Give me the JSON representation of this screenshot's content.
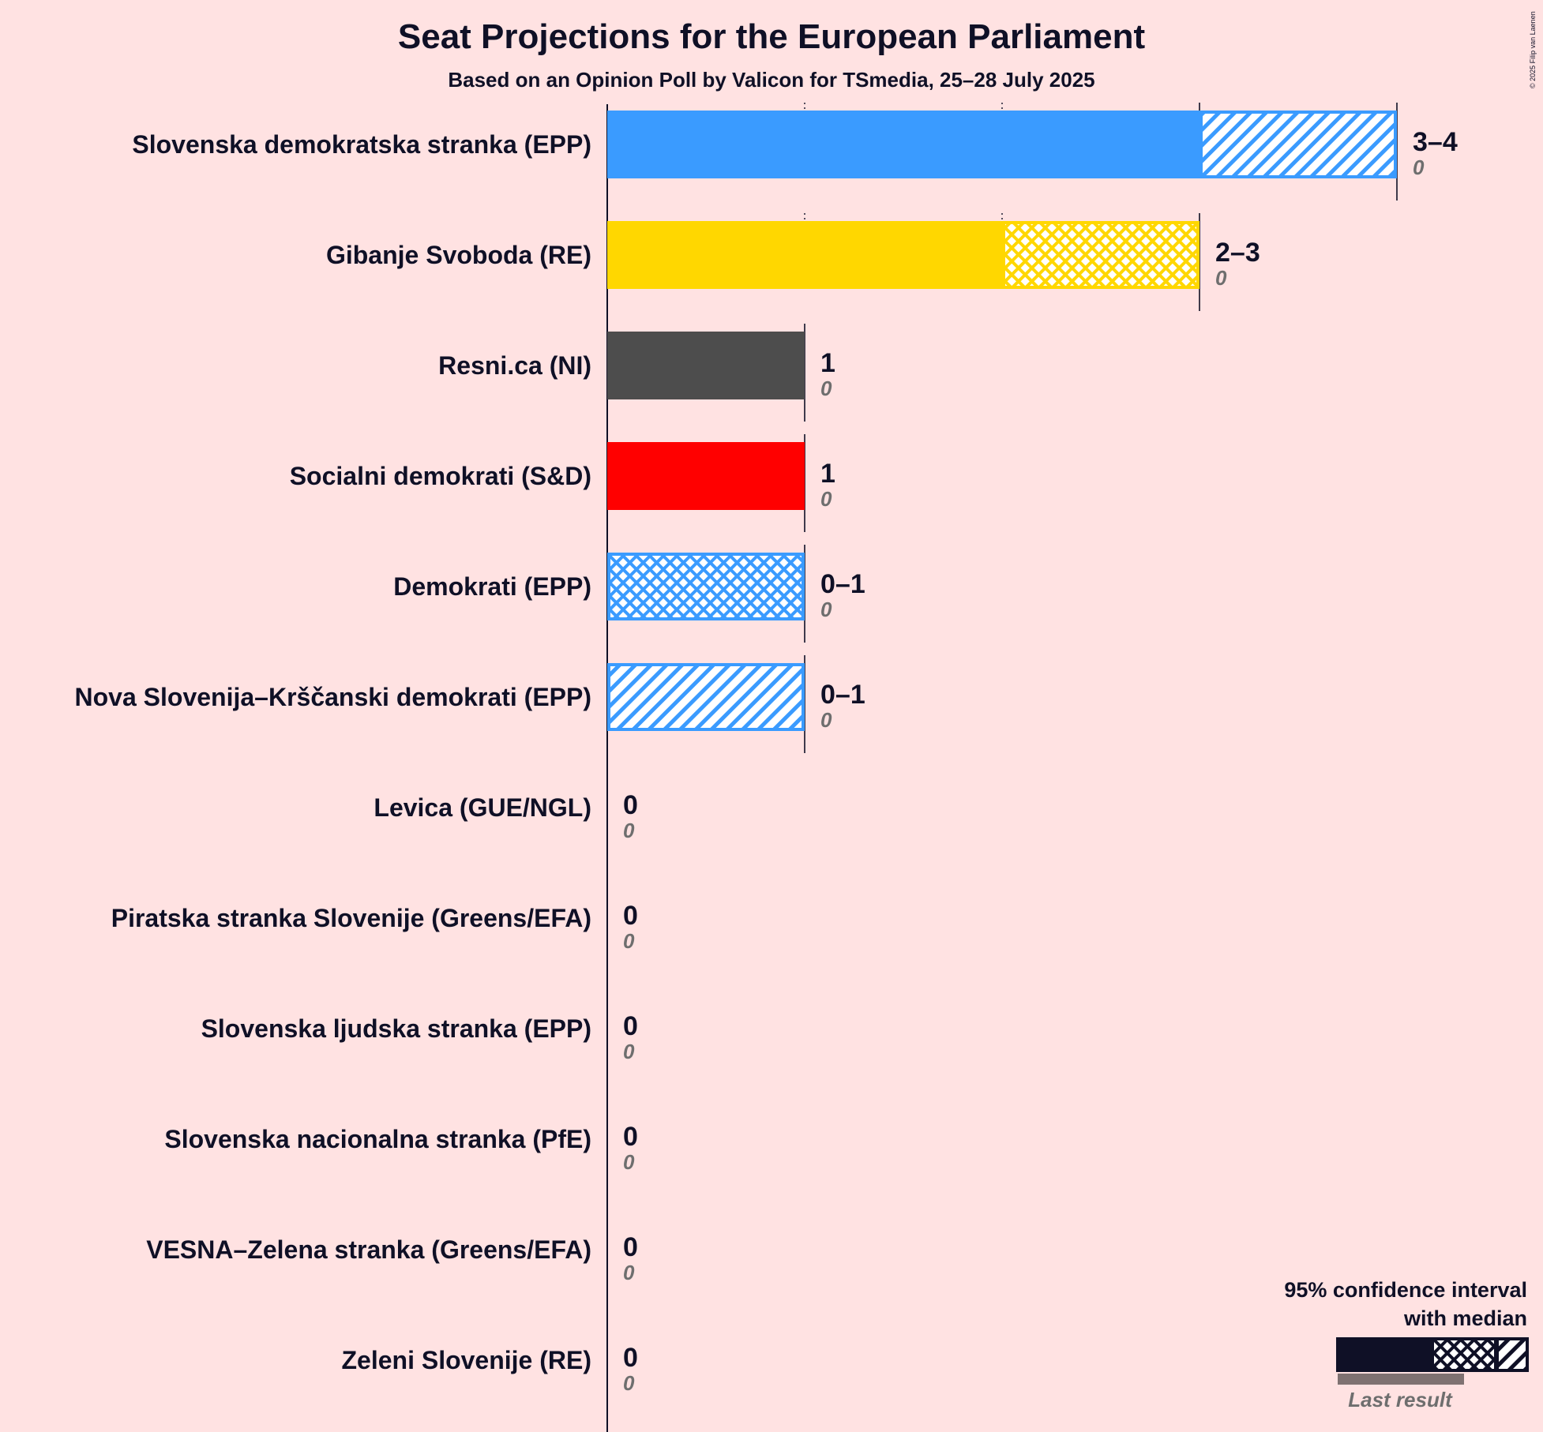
{
  "chart_data": {
    "type": "bar",
    "orientation": "horizontal",
    "title": "Seat Projections for the European Parliament",
    "subtitle": "Based on an Opinion Poll by Valicon for TSmedia, 25–28 July 2025",
    "copyright": "© 2025 Filip van Laenen",
    "xlim": [
      0,
      4
    ],
    "grid": "vertical dotted lines at each seat",
    "legend_placement": "bottom-right",
    "categories": [
      "Slovenska demokratska stranka (EPP)",
      "Gibanje Svoboda (RE)",
      "Resni.ca (NI)",
      "Socialni demokrati (S&D)",
      "Demokrati (EPP)",
      "Nova Slovenija–Krščanski demokrati (EPP)",
      "Levica (GUE/NGL)",
      "Piratska stranka Slovenije (Greens/EFA)",
      "Slovenska ljudska stranka (EPP)",
      "Slovenska nacionalna stranka (PfE)",
      "VESNA–Zelena stranka (Greens/EFA)",
      "Zeleni Slovenije (RE)"
    ],
    "parties": [
      {
        "name": "Slovenska demokratska stranka (EPP)",
        "color": "#3A9BFF",
        "low": 3,
        "median": 3,
        "high": 4,
        "range_label": "3–4",
        "last_result": 0,
        "last_label": "0"
      },
      {
        "name": "Gibanje Svoboda (RE)",
        "color": "#FFD700",
        "low": 2,
        "median": 3,
        "high": 3,
        "range_label": "2–3",
        "last_result": 0,
        "last_label": "0"
      },
      {
        "name": "Resni.ca (NI)",
        "color": "#4D4D4D",
        "low": 1,
        "median": 1,
        "high": 1,
        "range_label": "1",
        "last_result": 0,
        "last_label": "0"
      },
      {
        "name": "Socialni demokrati (S&D)",
        "color": "#FF0000",
        "low": 1,
        "median": 1,
        "high": 1,
        "range_label": "1",
        "last_result": 0,
        "last_label": "0"
      },
      {
        "name": "Demokrati (EPP)",
        "color": "#3A9BFF",
        "low": 0,
        "median": 1,
        "high": 1,
        "range_label": "0–1",
        "last_result": 0,
        "last_label": "0"
      },
      {
        "name": "Nova Slovenija–Krščanski demokrati (EPP)",
        "color": "#3A9BFF",
        "low": 0,
        "median": 0,
        "high": 1,
        "range_label": "0–1",
        "last_result": 0,
        "last_label": "0"
      },
      {
        "name": "Levica (GUE/NGL)",
        "color": "#8B0000",
        "low": 0,
        "median": 0,
        "high": 0,
        "range_label": "0",
        "last_result": 0,
        "last_label": "0"
      },
      {
        "name": "Piratska stranka Slovenije (Greens/EFA)",
        "color": "#000000",
        "low": 0,
        "median": 0,
        "high": 0,
        "range_label": "0",
        "last_result": 0,
        "last_label": "0"
      },
      {
        "name": "Slovenska ljudska stranka (EPP)",
        "color": "#3A9BFF",
        "low": 0,
        "median": 0,
        "high": 0,
        "range_label": "0",
        "last_result": 0,
        "last_label": "0"
      },
      {
        "name": "Slovenska nacionalna stranka (PfE)",
        "color": "#000000",
        "low": 0,
        "median": 0,
        "high": 0,
        "range_label": "0",
        "last_result": 0,
        "last_label": "0"
      },
      {
        "name": "VESNA–Zelena stranka (Greens/EFA)",
        "color": "#3A9B3A",
        "low": 0,
        "median": 0,
        "high": 0,
        "range_label": "0",
        "last_result": 0,
        "last_label": "0"
      },
      {
        "name": "Zeleni Slovenije (RE)",
        "color": "#FFD700",
        "low": 0,
        "median": 0,
        "high": 0,
        "range_label": "0",
        "last_result": 0,
        "last_label": "0"
      }
    ],
    "legend": {
      "title_line1": "95% confidence interval",
      "title_line2": "with median",
      "last_result_label": "Last result"
    }
  }
}
